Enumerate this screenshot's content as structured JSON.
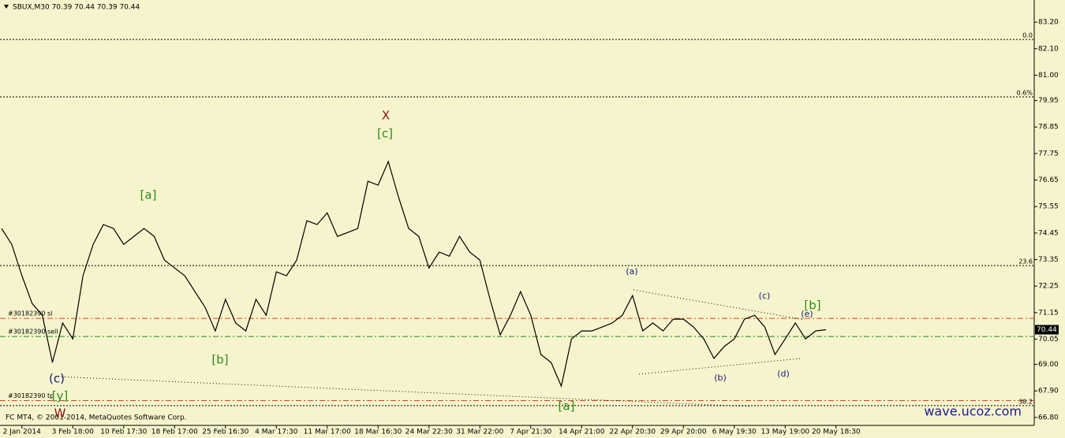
{
  "chart_data": {
    "type": "line",
    "title": "SBUX,M30  70.39 70.44 70.39 70.44",
    "footer": "FC MT4, © 2001-2014, MetaQuotes Software Corp.",
    "watermark": "wave.ucoz.com",
    "background": "#f6f4cc",
    "color": "#000000",
    "current_price": 70.44,
    "ylim": [
      66.47,
      84.12
    ],
    "yticks": [
      {
        "value": 83.2,
        "label": "83.20"
      },
      {
        "value": 82.1,
        "label": "82.10"
      },
      {
        "value": 81,
        "label": "81.00"
      },
      79.95,
      78.85,
      77.75,
      76.65,
      75.55,
      74.45,
      73.35,
      72.25,
      71.15,
      70.05,
      {
        "value": 69,
        "label": "69.00"
      },
      {
        "value": 67.9,
        "label": "67.90"
      },
      {
        "value": 66.8,
        "label": "66.80"
      }
    ],
    "categories": [
      null,
      null,
      "2 Jan 2014",
      null,
      null,
      null,
      null,
      "3 Feb 18:00",
      null,
      null,
      null,
      null,
      "10 Feb 17:30",
      null,
      null,
      null,
      null,
      "18 Feb 17:00",
      null,
      null,
      null,
      null,
      "25 Feb 16:30",
      null,
      null,
      null,
      null,
      "4 Mar 17:30",
      null,
      null,
      null,
      null,
      "11 Mar 17:00",
      null,
      null,
      null,
      null,
      "18 Mar 16:30",
      null,
      null,
      null,
      null,
      "24 Mar 22:30",
      null,
      null,
      null,
      null,
      "31 Mar 22:00",
      null,
      null,
      null,
      null,
      "7 Apr 21:30",
      null,
      null,
      null,
      null,
      "14 Apr 21:00",
      null,
      null,
      null,
      null,
      "22 Apr 20:30",
      null,
      null,
      null,
      null,
      "29 Apr 20:00",
      null,
      null,
      null,
      null,
      "6 May 19:30",
      null,
      null,
      null,
      null,
      "13 May 19:00",
      null,
      null,
      null,
      null,
      "20 May 18:30"
    ],
    "values": [
      74.64,
      73.98,
      72.68,
      71.53,
      71.04,
      69.08,
      70.72,
      70.06,
      72.68,
      73.98,
      74.8,
      74.64,
      73.98,
      74.31,
      74.64,
      74.31,
      73.33,
      73.0,
      72.68,
      72.02,
      71.37,
      70.39,
      71.7,
      70.72,
      70.39,
      71.7,
      71.04,
      72.84,
      72.68,
      73.33,
      74.96,
      74.8,
      75.29,
      74.31,
      74.47,
      74.64,
      76.6,
      76.44,
      77.42,
      75.95,
      74.64,
      74.31,
      73.0,
      73.66,
      73.49,
      74.31,
      73.66,
      73.33,
      71.7,
      70.23,
      71.04,
      72.02,
      71.04,
      69.41,
      69.08,
      68.1,
      70.06,
      70.39,
      70.39,
      70.55,
      70.72,
      71.04,
      71.86,
      70.39,
      70.72,
      70.39,
      70.88,
      70.88,
      70.55,
      70.06,
      69.25,
      69.74,
      70.06,
      70.88,
      71.04,
      70.55,
      69.41,
      70.06,
      70.72,
      70.06,
      70.39,
      70.44,
      null
    ],
    "levels": [
      {
        "name": "0.0",
        "price": 82.48,
        "color": "#000000"
      },
      {
        "name": "0.6%",
        "price": 80.1,
        "color": "#000000"
      },
      {
        "name": "23.6",
        "price": 73.1,
        "color": "#000000"
      },
      {
        "name": "38.2",
        "price": 67.29,
        "color": "#000000"
      }
    ],
    "orders": [
      {
        "label": "#30182390 sl",
        "price": 70.91,
        "color": "#e8401c"
      },
      {
        "label": "#30182390 sell",
        "price": 70.16,
        "color": "#109010"
      },
      {
        "label": "#30182390 tp",
        "price": 67.5,
        "color": "#e8401c"
      }
    ],
    "annotations": [
      {
        "text": "X",
        "color": "#8b1010"
      },
      {
        "text": "[c]",
        "color": "#2e8b1e"
      },
      {
        "text": "[a]",
        "color": "#2e8b1e"
      },
      {
        "text": "[b]",
        "color": "#2e8b1e"
      },
      {
        "text": "(c)",
        "color": "#1a1a7a"
      },
      {
        "text": "[y]",
        "color": "#2e8b1e"
      },
      {
        "text": "W",
        "color": "#8b1010"
      },
      {
        "text": "[a]",
        "color": "#2e8b1e"
      },
      {
        "text": "(a)",
        "color": "#1a1a7a"
      },
      {
        "text": "(b)",
        "color": "#1a1a7a"
      },
      {
        "text": "(c)",
        "color": "#1a1a7a"
      },
      {
        "text": "(d)",
        "color": "#1a1a7a"
      },
      {
        "text": "(e)",
        "color": "#1a1a7a"
      },
      {
        "text": "[b]",
        "color": "#2e8b1e"
      }
    ]
  }
}
